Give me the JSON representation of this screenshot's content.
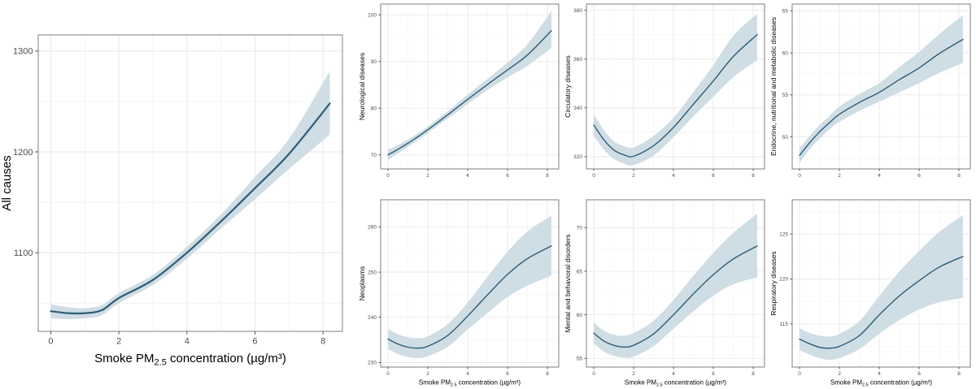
{
  "figure": {
    "xlabel": {
      "pre": "Smoke PM",
      "sub": "2.5",
      "post": " concentration (µg/m³)"
    },
    "colors": {
      "line": "#2e5d75",
      "band": "#cfdde5",
      "grid_major": "#e7e7e7",
      "grid_minor": "#f3f3f3",
      "border": "#7f7f7f",
      "tick_mark": "#333333",
      "tick_text": "#4d4d4d",
      "title_text": "#000000",
      "background": "#ffffff"
    }
  },
  "chart_data": [
    {
      "type": "line",
      "ylabel": "All causes",
      "size": "large",
      "show_xlabel": true,
      "x": [
        0,
        0.5,
        1,
        1.5,
        2,
        3,
        4,
        5,
        6,
        7,
        8.2
      ],
      "y": [
        1042,
        1040,
        1040,
        1043,
        1055,
        1073,
        1100,
        1131,
        1164,
        1198,
        1248
      ],
      "lower": [
        1035,
        1034,
        1035,
        1038,
        1050,
        1068,
        1094,
        1124,
        1153,
        1183,
        1217
      ],
      "upper": [
        1049,
        1046,
        1045,
        1048,
        1060,
        1078,
        1106,
        1138,
        1175,
        1213,
        1280
      ],
      "xticks": [
        0,
        2,
        4,
        6,
        8
      ],
      "yticks": [
        1100,
        1200,
        1300
      ],
      "xlim": [
        -0.37,
        8.57
      ],
      "ylim": [
        1022,
        1316
      ]
    },
    {
      "type": "line",
      "ylabel": "Neurological diseases",
      "size": "small",
      "show_xlabel": false,
      "x": [
        0,
        0.5,
        1,
        1.5,
        2,
        3,
        4,
        5,
        6,
        7,
        8.2
      ],
      "y": [
        70,
        71.2,
        72.5,
        73.9,
        75.4,
        78.6,
        81.9,
        85.1,
        88.2,
        91.4,
        96.6
      ],
      "lower": [
        68.9,
        70.3,
        71.7,
        73.2,
        74.7,
        77.8,
        80.9,
        83.9,
        86.6,
        89.1,
        92.9
      ],
      "upper": [
        71.1,
        72.1,
        73.3,
        74.6,
        76.1,
        79.4,
        82.9,
        86.3,
        89.8,
        93.7,
        100.8
      ],
      "xticks": [
        0,
        2,
        4,
        6,
        8
      ],
      "yticks": [
        70,
        80,
        90,
        100
      ],
      "xlim": [
        -0.37,
        8.57
      ],
      "ylim": [
        67,
        102.3
      ]
    },
    {
      "type": "line",
      "ylabel": "Circulatory diseases",
      "size": "small",
      "show_xlabel": false,
      "x": [
        0,
        0.5,
        1,
        1.5,
        2,
        3,
        4,
        5,
        6,
        7,
        8.2
      ],
      "y": [
        333,
        327,
        322.8,
        320.8,
        320.2,
        324.5,
        332,
        341.5,
        351,
        361,
        370
      ],
      "lower": [
        328.5,
        323,
        319.2,
        317.2,
        316.6,
        320.5,
        328,
        336.5,
        344.5,
        352.5,
        359.5
      ],
      "upper": [
        337.5,
        331,
        326.4,
        324.4,
        323.8,
        328.5,
        336,
        346.5,
        357.5,
        369.5,
        378.5
      ],
      "xticks": [
        0,
        2,
        4,
        6,
        8
      ],
      "yticks": [
        320,
        340,
        360,
        380
      ],
      "xlim": [
        -0.37,
        8.57
      ],
      "ylim": [
        315,
        382.5
      ]
    },
    {
      "type": "line",
      "ylabel": "Endocrine, nutritional and metabolic diseases",
      "size": "small",
      "show_xlabel": false,
      "x": [
        0,
        0.5,
        1,
        1.5,
        2,
        3,
        4,
        5,
        6,
        7,
        8.2
      ],
      "y": [
        47.8,
        49.3,
        50.6,
        51.7,
        52.7,
        54.1,
        55.3,
        56.8,
        58.2,
        59.9,
        61.6
      ],
      "lower": [
        46.9,
        48.5,
        49.8,
        50.9,
        51.8,
        53.1,
        54.2,
        55.3,
        56.4,
        57.6,
        58.8
      ],
      "upper": [
        48.7,
        50.1,
        51.4,
        52.5,
        53.6,
        55.1,
        56.4,
        58.3,
        60.1,
        62.2,
        64.5
      ],
      "xticks": [
        0,
        2,
        4,
        6,
        8
      ],
      "yticks": [
        50,
        55,
        60,
        65
      ],
      "xlim": [
        -0.37,
        8.57
      ],
      "ylim": [
        46.2,
        65.8
      ]
    },
    {
      "type": "line",
      "ylabel": "Neoplasms",
      "size": "small",
      "show_xlabel": true,
      "x": [
        0,
        0.5,
        1,
        1.5,
        2,
        3,
        4,
        5,
        6,
        7,
        8.2
      ],
      "y": [
        235.2,
        234.1,
        233.4,
        233.2,
        233.6,
        236,
        240.3,
        245,
        249.5,
        253,
        255.8
      ],
      "lower": [
        233,
        231.9,
        231.2,
        231,
        231.4,
        233.5,
        237.3,
        241,
        244.5,
        247,
        249.2
      ],
      "upper": [
        237.4,
        236.3,
        235.6,
        235.4,
        235.8,
        238.5,
        243.3,
        249,
        254.5,
        259,
        262.5
      ],
      "xticks": [
        0,
        2,
        4,
        6,
        8
      ],
      "yticks": [
        230,
        240,
        250,
        260
      ],
      "xlim": [
        -0.37,
        8.57
      ],
      "ylim": [
        229,
        266
      ]
    },
    {
      "type": "line",
      "ylabel": "Mental and behavioral disorders",
      "size": "small",
      "show_xlabel": true,
      "x": [
        0,
        0.5,
        1,
        1.5,
        2,
        3,
        4,
        5,
        6,
        7,
        8.2
      ],
      "y": [
        57.9,
        57,
        56.5,
        56.3,
        56.5,
        57.8,
        60,
        62.4,
        64.6,
        66.4,
        67.9
      ],
      "lower": [
        56.7,
        55.8,
        55.3,
        55.1,
        55.2,
        56.4,
        58.4,
        60.4,
        62.2,
        63.5,
        64.3
      ],
      "upper": [
        59.1,
        58.2,
        57.7,
        57.6,
        57.9,
        59.3,
        61.7,
        64.5,
        67.1,
        69.4,
        71.6
      ],
      "xticks": [
        0,
        2,
        4,
        6,
        8
      ],
      "yticks": [
        55,
        60,
        65,
        70
      ],
      "xlim": [
        -0.37,
        8.57
      ],
      "ylim": [
        54,
        73.2
      ]
    },
    {
      "type": "line",
      "ylabel": "Respiratory diseases",
      "size": "small",
      "show_xlabel": true,
      "x": [
        0,
        0.5,
        1,
        1.5,
        2,
        3,
        4,
        5,
        6,
        7,
        8.2
      ],
      "y": [
        113.3,
        112.8,
        112.4,
        112.3,
        112.5,
        113.7,
        116,
        118.1,
        119.8,
        121.3,
        122.5
      ],
      "lower": [
        112.1,
        111.6,
        111.2,
        111,
        111.2,
        112.2,
        113.9,
        115.4,
        116.6,
        117.4,
        117.9
      ],
      "upper": [
        114.5,
        114,
        113.7,
        113.6,
        113.9,
        115.3,
        118.1,
        120.8,
        123.1,
        125.2,
        127.1
      ],
      "xticks": [
        0,
        2,
        4,
        6,
        8
      ],
      "yticks": [
        115,
        120,
        125
      ],
      "xlim": [
        -0.37,
        8.57
      ],
      "ylim": [
        110.2,
        128.8
      ]
    }
  ]
}
